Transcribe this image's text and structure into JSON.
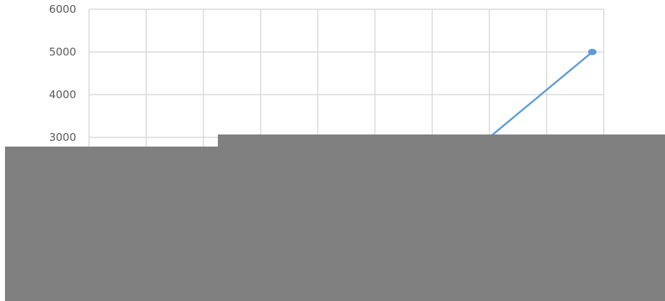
{
  "chart_data": {
    "type": "line",
    "title": "",
    "xlabel": "",
    "ylabel": "",
    "ylim": [
      0,
      6000
    ],
    "yticks_visible": [
      "6000",
      "5000",
      "4000",
      "3000"
    ],
    "grid": true,
    "series": [
      {
        "color": "#5b9bd5",
        "points": [
          {
            "x": 7,
            "y": 3000
          },
          {
            "x": 8.8,
            "y": 5000
          }
        ]
      }
    ]
  },
  "overlays": {
    "color": "#808080"
  }
}
